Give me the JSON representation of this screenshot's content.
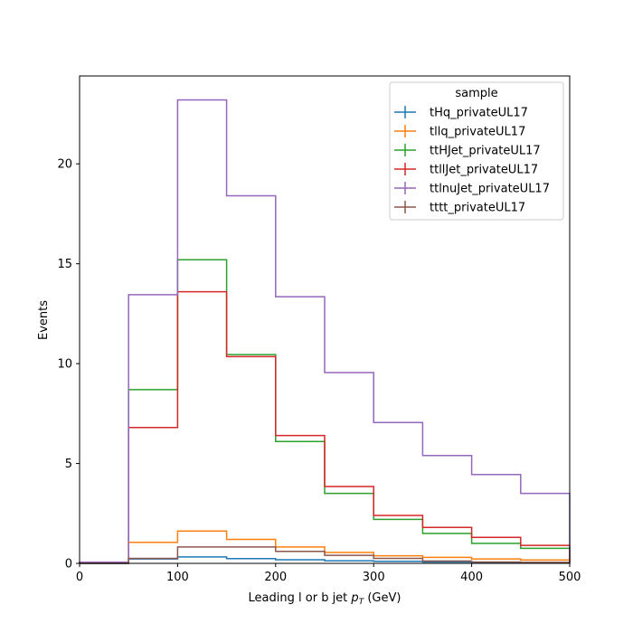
{
  "chart_data": {
    "type": "histogram",
    "title": "",
    "xlabel": "Leading l or b jet",
    "xlabel_math": "p",
    "xlabel_math_sub": "T",
    "xlabel_unit": "(GeV)",
    "ylabel": "Events",
    "xlim": [
      0,
      500
    ],
    "ylim": [
      0,
      24.4
    ],
    "xticks": [
      "0",
      "100",
      "200",
      "300",
      "400",
      "500"
    ],
    "yticks": [
      "0",
      "5",
      "10",
      "15",
      "20"
    ],
    "bin_edges": [
      0,
      50,
      100,
      150,
      200,
      250,
      300,
      350,
      400,
      450,
      500
    ],
    "grid": false,
    "legend_title": "sample",
    "legend_position": "upper right",
    "series": [
      {
        "name": "tHq_privateUL17",
        "color": "#1f77b4",
        "values": [
          0.0,
          0.22,
          0.32,
          0.24,
          0.18,
          0.13,
          0.1,
          0.07,
          0.05,
          0.04
        ]
      },
      {
        "name": "tllq_privateUL17",
        "color": "#ff7f0e",
        "values": [
          0.05,
          1.05,
          1.62,
          1.2,
          0.82,
          0.55,
          0.38,
          0.3,
          0.22,
          0.17
        ]
      },
      {
        "name": "ttHJet_privateUL17",
        "color": "#2ca02c",
        "values": [
          0.0,
          8.7,
          15.2,
          10.45,
          6.1,
          3.5,
          2.2,
          1.5,
          1.0,
          0.75
        ]
      },
      {
        "name": "ttllJet_privateUL17",
        "color": "#d62728",
        "values": [
          0.05,
          6.8,
          13.6,
          10.35,
          6.4,
          3.85,
          2.4,
          1.8,
          1.3,
          0.9
        ]
      },
      {
        "name": "ttlnuJet_privateUL17",
        "color": "#9467bd",
        "values": [
          0.05,
          13.45,
          23.2,
          18.4,
          13.35,
          9.55,
          7.05,
          5.4,
          4.45,
          3.5
        ]
      },
      {
        "name": "tttt_privateUL17",
        "color": "#8c564b",
        "values": [
          0.0,
          0.25,
          0.82,
          0.82,
          0.6,
          0.4,
          0.25,
          0.12,
          0.07,
          0.05
        ]
      }
    ]
  }
}
